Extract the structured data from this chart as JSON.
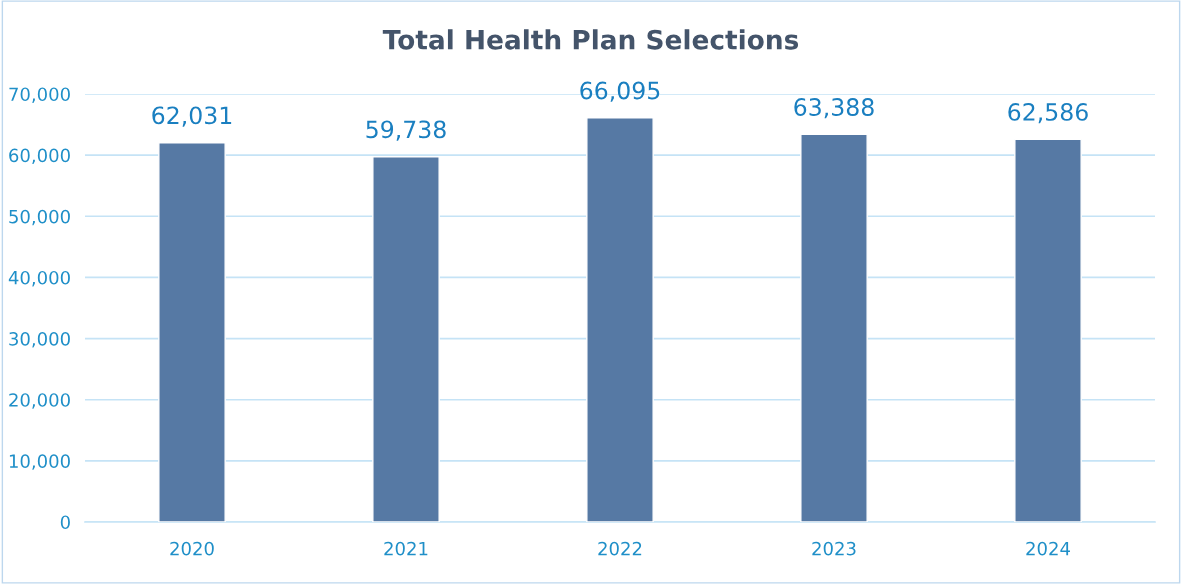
{
  "chart_data": {
    "type": "bar",
    "title": "Total Health Plan Selections",
    "categories": [
      "2020",
      "2021",
      "2022",
      "2023",
      "2024"
    ],
    "values": [
      62031,
      59738,
      66095,
      63388,
      62586
    ],
    "color": "#5679a4",
    "ylim": [
      0,
      70000
    ],
    "yticks": [
      0,
      {
        "value": 10000,
        "label": "10,000"
      },
      {
        "value": 20000,
        "label": "20,000"
      },
      {
        "value": 30000,
        "label": "30,000"
      },
      {
        "value": 40000,
        "label": "40,000"
      },
      {
        "value": 50000,
        "label": "50,000"
      },
      {
        "value": 60000,
        "label": "60,000"
      },
      {
        "value": 70000,
        "label": "70,000"
      }
    ],
    "value_labels": [
      "62,031",
      "59,738",
      "66,095",
      "63,388",
      "62,586"
    ],
    "grid": "y"
  }
}
